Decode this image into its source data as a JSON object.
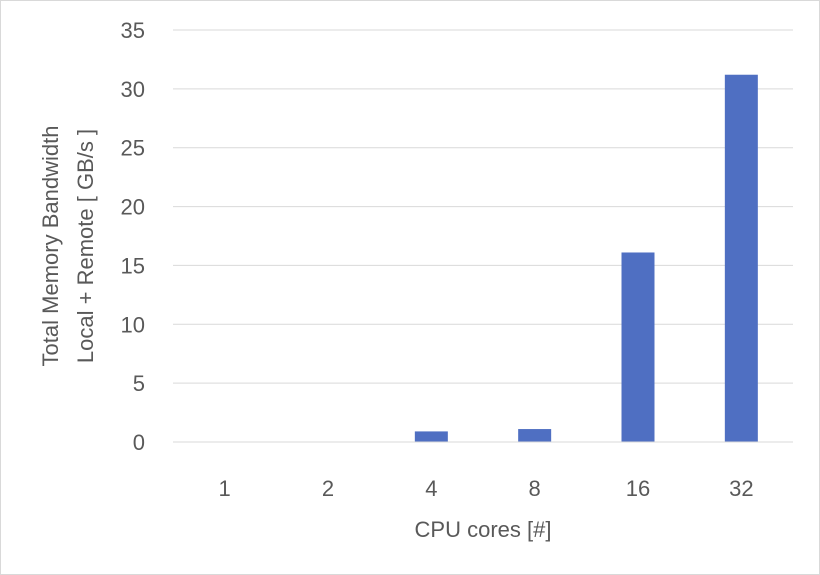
{
  "chart_data": {
    "type": "bar",
    "title": "",
    "xlabel": "CPU cores [#]",
    "ylabel_lines": [
      "Total Memory Bandwidth",
      "Local + Remote [ GB/s ]"
    ],
    "categories": [
      "1",
      "2",
      "4",
      "8",
      "16",
      "32"
    ],
    "values": [
      0,
      0,
      0.9,
      1.1,
      16.1,
      31.2
    ],
    "ylim": [
      0,
      35
    ],
    "yticks": [
      "0",
      "5",
      "10",
      "15",
      "20",
      "25",
      "30",
      "35"
    ],
    "grid": true,
    "legend": "none",
    "colors": {
      "bar": "#4f6fc2",
      "grid": "#d9d9d9",
      "text": "#595959",
      "axis": "#d9d9d9"
    }
  }
}
